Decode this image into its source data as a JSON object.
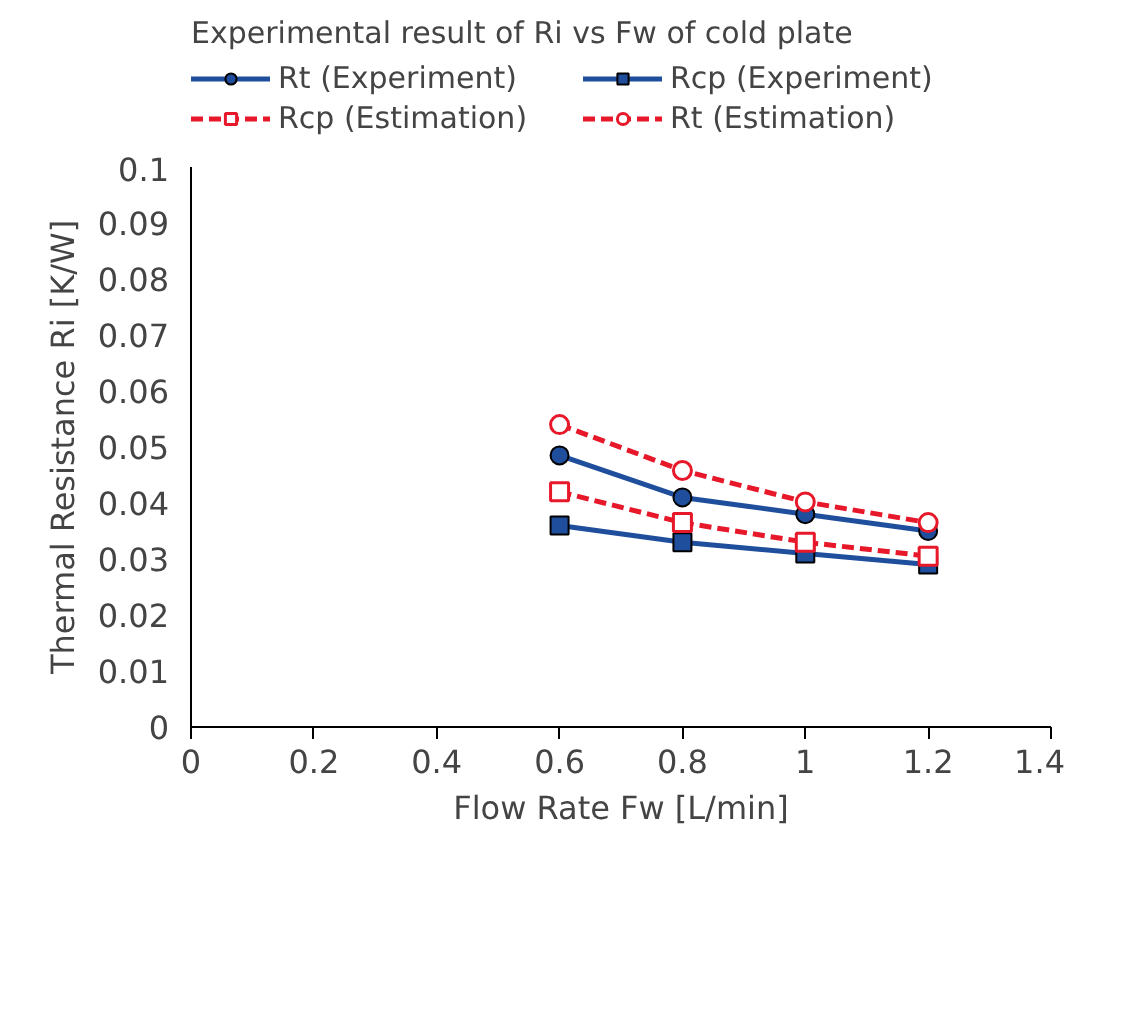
{
  "chart_data": {
    "type": "line",
    "title": "Experimental result of Ri vs Fw of cold plate",
    "xlabel": "Flow Rate Fw [L/min]",
    "ylabel": "Thermal Resistance Ri [K/W]",
    "x": [
      0.6,
      0.8,
      1.0,
      1.2
    ],
    "series": [
      {
        "name": "Rt (Experiment)",
        "color": "#1f4e9c",
        "marker": "circle",
        "line_style": "solid",
        "values": [
          0.0485,
          0.041,
          0.038,
          0.035
        ]
      },
      {
        "name": "Rcp (Experiment)",
        "color": "#1f4e9c",
        "marker": "square",
        "line_style": "solid",
        "values": [
          0.036,
          0.033,
          0.031,
          0.029
        ]
      },
      {
        "name": "Rcp (Estimation)",
        "color": "#e8182b",
        "marker": "square",
        "line_style": "dashed",
        "values": [
          0.042,
          0.0365,
          0.033,
          0.0305
        ]
      },
      {
        "name": "Rt (Estimation)",
        "color": "#e8182b",
        "marker": "circle",
        "line_style": "dashed",
        "values": [
          0.054,
          0.0458,
          0.0402,
          0.0365
        ]
      }
    ],
    "xlim": [
      0,
      1.4
    ],
    "xticks": [
      0,
      {
        "value": 0.2,
        "label": "0.2"
      },
      {
        "value": 0.4,
        "label": "0.4"
      },
      {
        "value": 0.6,
        "label": "0.6"
      },
      {
        "value": 0.8,
        "label": "0.8"
      },
      1,
      {
        "value": 1.2,
        "label": "1.2"
      },
      {
        "value": 1.4,
        "label": "1.4"
      }
    ],
    "ylim": [
      0,
      0.1
    ],
    "yticks": [
      0,
      {
        "value": 0.01,
        "label": "0.01"
      },
      {
        "value": 0.02,
        "label": "0.02"
      },
      {
        "value": 0.03,
        "label": "0.03"
      },
      {
        "value": 0.04,
        "label": "0.04"
      },
      {
        "value": 0.05,
        "label": "0.05"
      },
      {
        "value": 0.06,
        "label": "0.06"
      },
      {
        "value": 0.07,
        "label": "0.07"
      },
      {
        "value": 0.08,
        "label": "0.08"
      },
      {
        "value": 0.09,
        "label": "0.09"
      },
      {
        "value": 0.1,
        "label": "0.1"
      }
    ],
    "grid": false,
    "legend": "top"
  }
}
